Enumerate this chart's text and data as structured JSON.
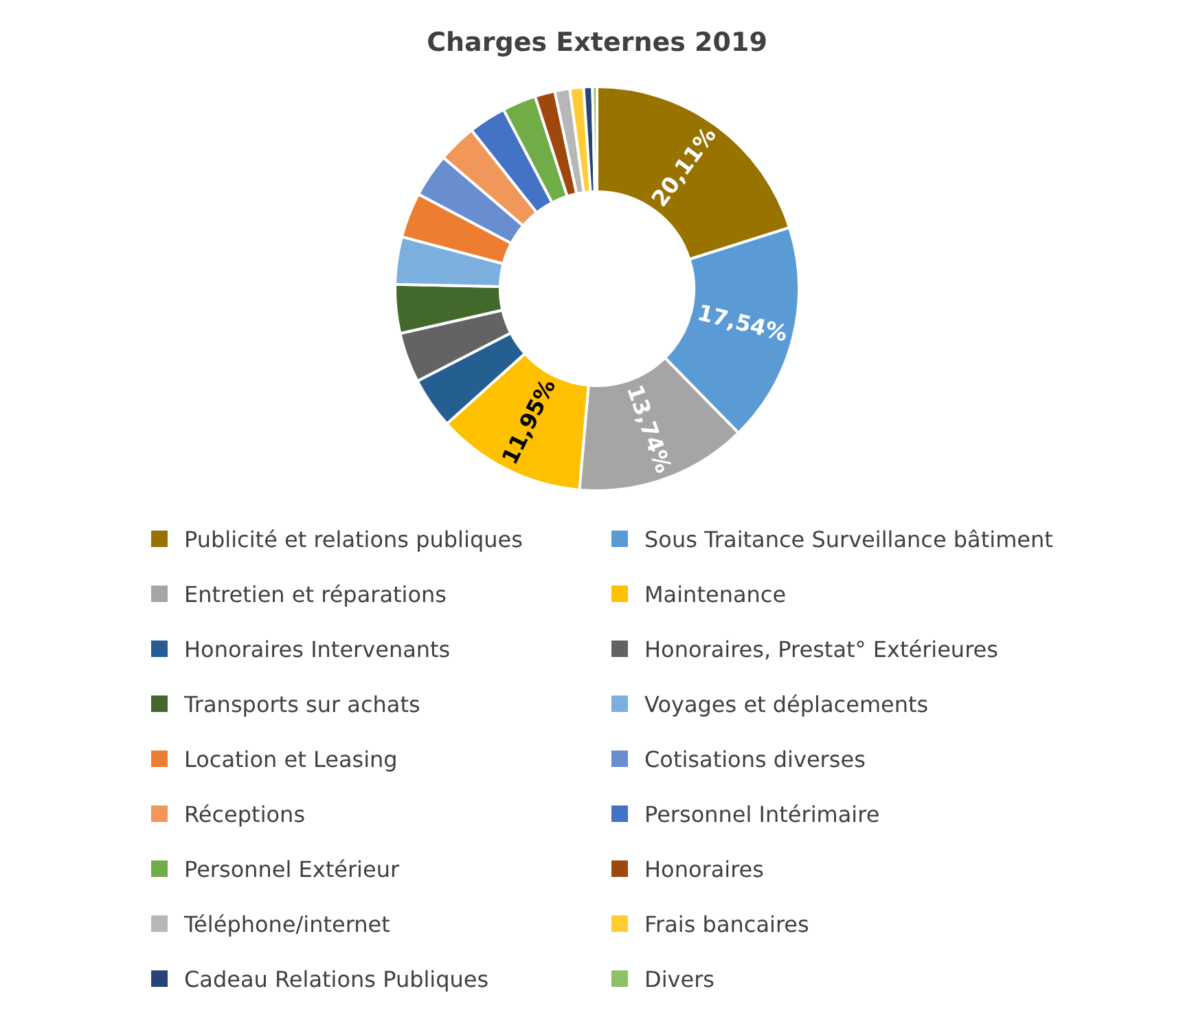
{
  "chart_data": {
    "type": "donut",
    "title": "Charges Externes 2019",
    "categories": [
      "Publicité et relations publiques",
      "Sous Traitance Surveillance bâtiment",
      "Entretien et réparations",
      "Maintenance",
      "Honoraires Intervenants",
      "Honoraires, Prestat° Extérieures",
      "Transports sur achats",
      "Voyages et déplacements",
      "Location et Leasing",
      "Cotisations diverses",
      "Réceptions",
      "Personnel Intérimaire",
      "Personnel Extérieur",
      "Honoraires",
      "Téléphone/internet",
      "Frais bancaires",
      "Cadeau Relations Publiques",
      "Divers"
    ],
    "values": [
      20.11,
      17.54,
      13.74,
      11.95,
      4.1,
      4.0,
      3.9,
      3.8,
      3.6,
      3.5,
      3.1,
      3.0,
      2.7,
      1.6,
      1.2,
      1.1,
      0.7,
      0.36
    ],
    "colors": [
      "#997300",
      "#5b9bd5",
      "#a5a5a5",
      "#ffc000",
      "#255e91",
      "#636363",
      "#43682b",
      "#7cafdd",
      "#ed7d31",
      "#698ed0",
      "#f1975a",
      "#4472c4",
      "#70ad47",
      "#9e480e",
      "#b7b7b7",
      "#ffcd33",
      "#264478",
      "#8cc168"
    ],
    "value_labels": [
      "20,11%",
      "17,54%",
      "13,74%",
      "11,95%",
      null,
      null,
      null,
      null,
      null,
      null,
      null,
      null,
      null,
      null,
      null,
      null,
      null,
      null
    ],
    "legend": "bottom"
  }
}
